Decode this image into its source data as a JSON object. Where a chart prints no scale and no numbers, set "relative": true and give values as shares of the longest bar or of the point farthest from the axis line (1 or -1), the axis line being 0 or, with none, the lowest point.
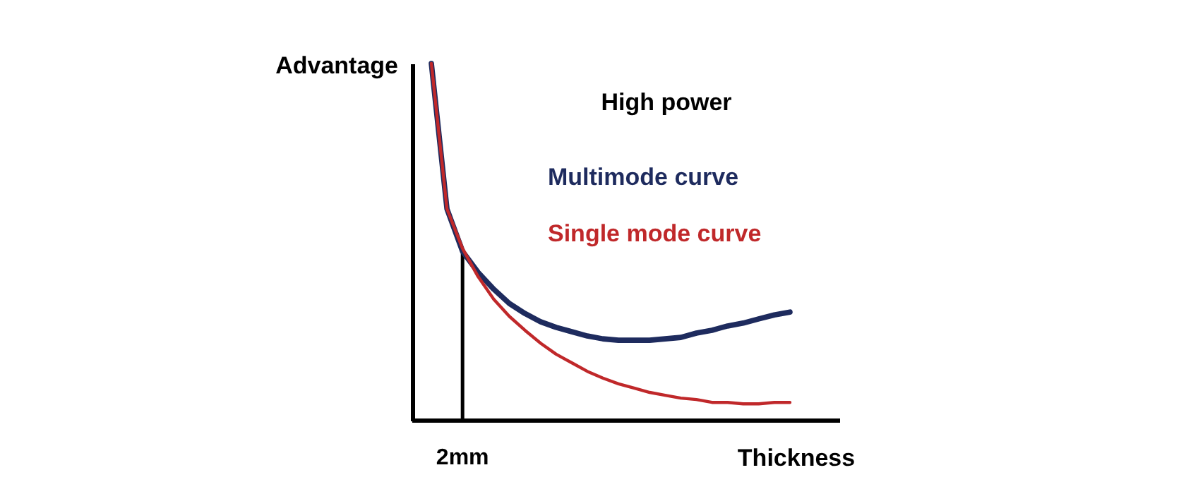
{
  "chart_data": {
    "type": "line",
    "relative": true,
    "ylabel": "Advantage",
    "xlabel": "Thickness",
    "annotations": [
      "High power",
      {
        "text": "2mm",
        "y": 0.474
      }
    ],
    "categories": [
      null,
      null,
      null,
      null,
      null,
      null,
      null,
      null,
      null,
      null,
      null,
      null,
      null,
      null,
      null,
      null,
      null,
      null,
      null,
      null,
      null,
      null,
      null,
      null
    ],
    "legend": false,
    "marker": "none",
    "line_style": "solid",
    "series": [
      {
        "name": "Multimode curve",
        "color": "#1e2b5e",
        "values": [
          1.0,
          0.593,
          0.474,
          0.415,
          0.368,
          0.328,
          0.3,
          0.277,
          0.261,
          0.249,
          0.237,
          0.229,
          0.225,
          0.225,
          0.225,
          0.229,
          0.233,
          0.245,
          0.253,
          0.265,
          0.273,
          0.285,
          0.296,
          0.304
        ]
      },
      {
        "name": "Single mode curve",
        "color": "#c0282a",
        "values": [
          1.0,
          0.593,
          0.482,
          0.403,
          0.34,
          0.292,
          0.253,
          0.217,
          0.186,
          0.162,
          0.138,
          0.119,
          0.103,
          0.091,
          0.079,
          0.071,
          0.063,
          0.059,
          0.051,
          0.051,
          0.047,
          0.047,
          0.051,
          0.051
        ]
      }
    ]
  }
}
